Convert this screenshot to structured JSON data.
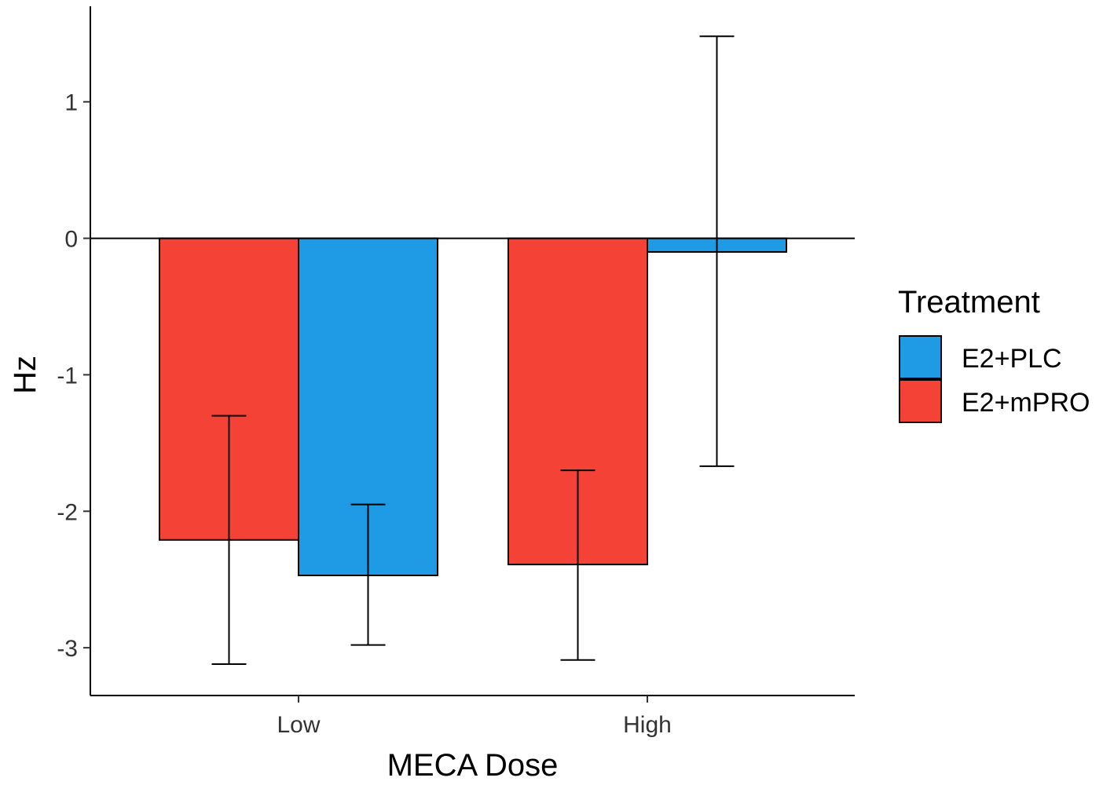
{
  "chart_data": {
    "type": "bar",
    "title": "",
    "xlabel": "MECA Dose",
    "ylabel": "Hz",
    "categories": [
      "Low",
      "High"
    ],
    "ylim": [
      -3.35,
      1.7
    ],
    "yticks": [
      -3,
      -2,
      -1,
      0,
      1
    ],
    "ytick_labels": [
      "-3",
      "-2",
      "-1",
      "0",
      "1"
    ],
    "legend": {
      "title": "Treatment",
      "position": "right"
    },
    "series": [
      {
        "name": "E2+mPRO",
        "color": "#f44336",
        "values": [
          -2.21,
          -2.39
        ],
        "err_low": [
          -3.12,
          -3.09
        ],
        "err_high": [
          -1.3,
          -1.7
        ]
      },
      {
        "name": "E2+PLC",
        "color": "#1e9be4",
        "values": [
          -2.47,
          -0.1
        ],
        "err_low": [
          -2.98,
          -1.67
        ],
        "err_high": [
          -1.95,
          1.48
        ]
      }
    ],
    "legend_order": [
      "E2+PLC",
      "E2+mPRO"
    ]
  }
}
